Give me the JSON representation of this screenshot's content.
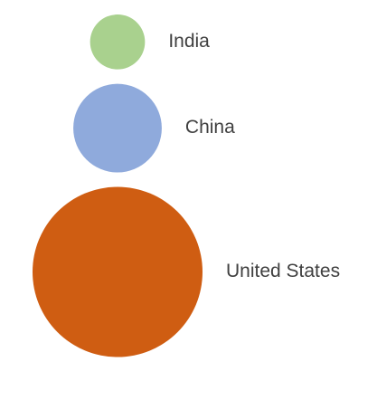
{
  "chart_data": {
    "type": "bubble",
    "title": "",
    "legend": "none",
    "grid": false,
    "items": [
      {
        "label": "India",
        "value": 1,
        "color": "#A9D18E"
      },
      {
        "label": "China",
        "value": 2.6,
        "color": "#8FAADC"
      },
      {
        "label": "United States",
        "value": 9.6,
        "color": "#CF5D12"
      }
    ]
  }
}
